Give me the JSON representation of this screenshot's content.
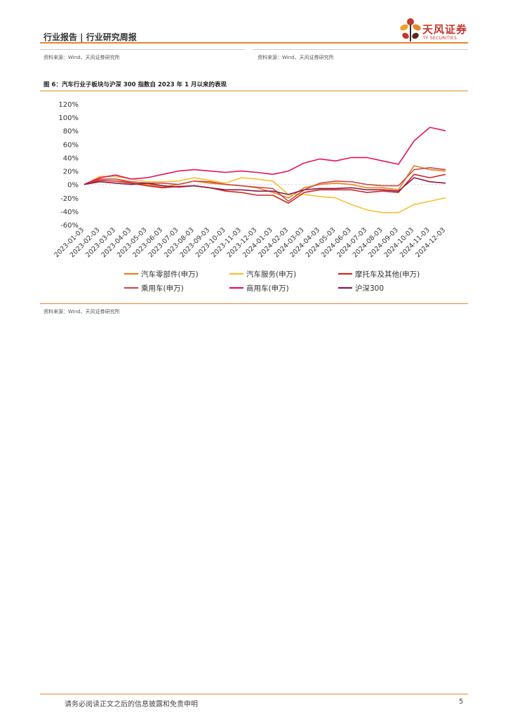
{
  "header": {
    "title": "行业报告 | 行业研究周报",
    "logo_name": "天风证券",
    "logo_sub": "TF SECURITIES"
  },
  "sources": {
    "left": "资料来源：Wind、天风证券研究所",
    "right": "资料来源：Wind、天风证券研究所",
    "figure": "资料来源：Wind、天风证券研究所"
  },
  "figure": {
    "title": "图 6：汽车行业子板块与沪深 300 指数自 2023 年 1 月以来的表现"
  },
  "footer": {
    "disclaimer": "请务必阅读正文之后的信息披露和免责申明",
    "page_number": "5"
  },
  "colors": {
    "accent": "#e8842c",
    "brand": "#c4372e"
  },
  "chart_data": {
    "type": "line",
    "title": "汽车行业子板块与沪深 300 指数自 2023 年 1 月以来的表现",
    "xlabel": "",
    "ylabel": "",
    "ylim": [
      -60,
      120
    ],
    "yticks": [
      "120%",
      "100%",
      "80%",
      "60%",
      "40%",
      "20%",
      "0%",
      "-20%",
      "-40%",
      "-60%"
    ],
    "ytick_values": [
      120,
      100,
      80,
      60,
      40,
      20,
      0,
      -20,
      -40,
      -60
    ],
    "categories": [
      "2023-01-03",
      "2023-02-03",
      "2023-03-03",
      "2023-04-03",
      "2023-05-03",
      "2023-06-03",
      "2023-07-03",
      "2023-08-03",
      "2023-09-03",
      "2023-10-03",
      "2023-11-03",
      "2023-12-03",
      "2024-01-03",
      "2024-02-03",
      "2024-03-03",
      "2024-04-03",
      "2024-05-03",
      "2024-06-03",
      "2024-07-03",
      "2024-08-03",
      "2024-09-03",
      "2024-10-03",
      "2024-11-03",
      "2024-12-03"
    ],
    "legend_position": "bottom",
    "series": [
      {
        "name": "汽车零部件(申万)",
        "color": "#ee7d1f",
        "values": [
          0,
          8,
          8,
          2,
          0,
          -4,
          0,
          5,
          2,
          0,
          -2,
          -5,
          -12,
          -20,
          -5,
          0,
          2,
          0,
          -5,
          -5,
          -8,
          28,
          22,
          20
        ]
      },
      {
        "name": "汽车服务(申万)",
        "color": "#fbbf2e",
        "values": [
          0,
          12,
          12,
          8,
          4,
          4,
          5,
          10,
          6,
          2,
          10,
          8,
          5,
          -15,
          -15,
          -18,
          -20,
          -30,
          -38,
          -42,
          -42,
          -30,
          -25,
          -20
        ]
      },
      {
        "name": "摩托车及其他(申万)",
        "color": "#cc2a1f",
        "values": [
          0,
          6,
          5,
          2,
          -2,
          -5,
          -3,
          -2,
          -5,
          -10,
          -12,
          -16,
          -16,
          -28,
          -12,
          -8,
          -8,
          -8,
          -12,
          -10,
          -12,
          15,
          10,
          15
        ]
      },
      {
        "name": "乘用车(申万)",
        "color": "#c0504d",
        "values": [
          0,
          8,
          8,
          4,
          2,
          2,
          0,
          5,
          4,
          0,
          -2,
          -4,
          -6,
          -25,
          -8,
          2,
          5,
          4,
          0,
          -2,
          -2,
          22,
          25,
          22
        ]
      },
      {
        "name": "商用车(申万)",
        "color": "#e5115f",
        "values": [
          0,
          10,
          14,
          8,
          10,
          15,
          20,
          22,
          20,
          18,
          20,
          18,
          15,
          20,
          32,
          38,
          35,
          40,
          40,
          35,
          30,
          65,
          85,
          80
        ]
      },
      {
        "name": "沪深300",
        "color": "#8b1a4a",
        "values": [
          0,
          4,
          2,
          0,
          2,
          -2,
          -4,
          -2,
          -5,
          -8,
          -8,
          -10,
          -10,
          -15,
          -8,
          -6,
          -6,
          -5,
          -8,
          -8,
          -10,
          10,
          4,
          2
        ]
      }
    ]
  }
}
